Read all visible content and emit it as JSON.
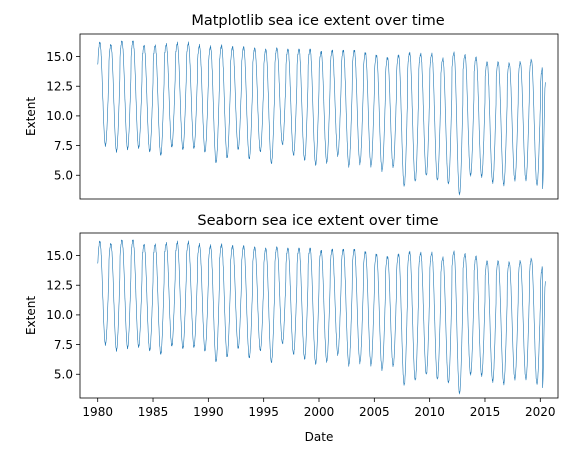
{
  "colors": {
    "series": "#1f77b4"
  },
  "chart_data": [
    {
      "type": "line",
      "title": "Matplotlib sea ice extent over time",
      "xlabel": "",
      "ylabel": "Extent",
      "xlim": [
        1978.4,
        2021.6
      ],
      "ylim": [
        3.0,
        16.9
      ],
      "x_ticks_shown": false,
      "yticks": [
        "5.0",
        "7.5",
        "10.0",
        "12.5",
        "15.0"
      ],
      "series": [
        {
          "x": [
            1980,
            1981,
            1982,
            1983,
            1984,
            1985,
            1986,
            1987,
            1988,
            1989,
            1990,
            1991,
            1992,
            1993,
            1994,
            1995,
            1996,
            1997,
            1998,
            1999,
            2000,
            2001,
            2002,
            2003,
            2004,
            2005,
            2006,
            2007,
            2008,
            2009,
            2010,
            2011,
            2012,
            2013,
            2014,
            2015,
            2016,
            2017,
            2018,
            2019,
            2020
          ],
          "annual_max": [
            16.2,
            16.0,
            16.3,
            16.3,
            15.9,
            15.9,
            16.0,
            16.1,
            16.1,
            15.9,
            15.8,
            15.9,
            15.8,
            15.8,
            15.7,
            15.6,
            15.7,
            15.6,
            15.6,
            15.6,
            15.4,
            15.5,
            15.5,
            15.5,
            15.3,
            15.1,
            14.9,
            15.1,
            15.3,
            15.2,
            15.2,
            14.8,
            15.3,
            15.1,
            14.9,
            14.5,
            14.5,
            14.4,
            14.5,
            14.7,
            14.0
          ],
          "annual_min": [
            7.5,
            7.0,
            7.2,
            7.3,
            7.0,
            6.7,
            7.4,
            7.2,
            7.3,
            7.0,
            6.1,
            6.5,
            7.2,
            6.4,
            7.0,
            6.0,
            7.6,
            6.7,
            6.3,
            5.9,
            6.1,
            6.7,
            5.8,
            6.0,
            5.8,
            5.4,
            5.7,
            4.1,
            4.5,
            5.0,
            4.6,
            4.3,
            3.4,
            5.0,
            4.9,
            4.4,
            4.2,
            4.6,
            4.6,
            4.2,
            3.9
          ],
          "end_value": 12.8
        }
      ]
    },
    {
      "type": "line",
      "title": "Seaborn sea ice extent over time",
      "xlabel": "Date",
      "ylabel": "Extent",
      "xlim": [
        1978.4,
        2021.6
      ],
      "ylim": [
        3.0,
        16.9
      ],
      "xticks": [
        "1980",
        "1985",
        "1990",
        "1995",
        "2000",
        "2005",
        "2010",
        "2015",
        "2020"
      ],
      "yticks": [
        "5.0",
        "7.5",
        "10.0",
        "12.5",
        "15.0"
      ],
      "series": [
        {
          "x": [
            1980,
            1981,
            1982,
            1983,
            1984,
            1985,
            1986,
            1987,
            1988,
            1989,
            1990,
            1991,
            1992,
            1993,
            1994,
            1995,
            1996,
            1997,
            1998,
            1999,
            2000,
            2001,
            2002,
            2003,
            2004,
            2005,
            2006,
            2007,
            2008,
            2009,
            2010,
            2011,
            2012,
            2013,
            2014,
            2015,
            2016,
            2017,
            2018,
            2019,
            2020
          ],
          "annual_max": [
            16.2,
            16.0,
            16.3,
            16.3,
            15.9,
            15.9,
            16.0,
            16.1,
            16.1,
            15.9,
            15.8,
            15.9,
            15.8,
            15.8,
            15.7,
            15.6,
            15.7,
            15.6,
            15.6,
            15.6,
            15.4,
            15.5,
            15.5,
            15.5,
            15.3,
            15.1,
            14.9,
            15.1,
            15.3,
            15.2,
            15.2,
            14.8,
            15.3,
            15.1,
            14.9,
            14.5,
            14.5,
            14.4,
            14.5,
            14.7,
            14.0
          ],
          "annual_min": [
            7.5,
            7.0,
            7.2,
            7.3,
            7.0,
            6.7,
            7.4,
            7.2,
            7.3,
            7.0,
            6.1,
            6.5,
            7.2,
            6.4,
            7.0,
            6.0,
            7.6,
            6.7,
            6.3,
            5.9,
            6.1,
            6.7,
            5.8,
            6.0,
            5.8,
            5.4,
            5.7,
            4.1,
            4.5,
            5.0,
            4.6,
            4.3,
            3.4,
            5.0,
            4.9,
            4.4,
            4.2,
            4.6,
            4.6,
            4.2,
            3.9
          ],
          "end_value": 12.8
        }
      ]
    }
  ]
}
